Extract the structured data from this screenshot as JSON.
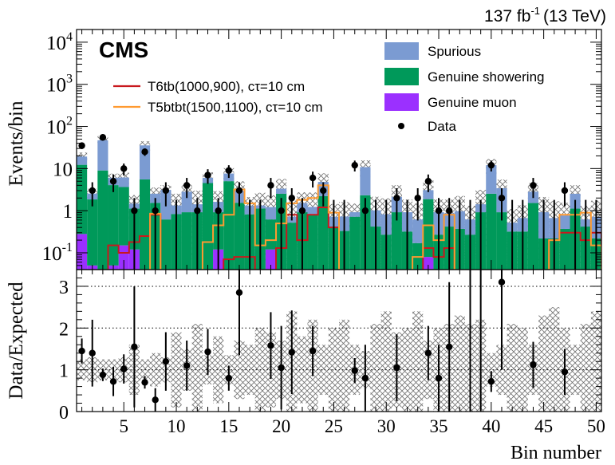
{
  "chart_data": {
    "type": "bar",
    "lumi_label": "137 fb",
    "lumi_sup": "-1",
    "lumi_energy": "(13 TeV)",
    "experiment": "CMS",
    "xlabel": "Bin number",
    "ylabel_top": "Events/bin",
    "ylabel_bottom": "Data/Expected",
    "xlim": [
      0.5,
      50.5
    ],
    "ylim_top": [
      0.04,
      20000
    ],
    "yscale_top": "log",
    "ylim_bottom": [
      0,
      3.4
    ],
    "x_ticks": [
      5,
      10,
      15,
      20,
      25,
      30,
      35,
      40,
      45,
      50
    ],
    "y_ticks_top": [
      {
        "value": 0.1,
        "base": "10",
        "exp": "-1"
      },
      {
        "value": 1,
        "label": "1"
      },
      {
        "value": 10,
        "label": "10"
      },
      {
        "value": 100,
        "base": "10",
        "exp": "2"
      },
      {
        "value": 1000,
        "base": "10",
        "exp": "3"
      },
      {
        "value": 10000,
        "base": "10",
        "exp": "4"
      }
    ],
    "y_ticks_bottom": [
      0,
      1,
      2,
      3
    ],
    "legend": {
      "spurious": "Spurious",
      "showering": "Genuine showering",
      "muon": "Genuine muon",
      "data": "Data",
      "signal1": "T6tb(1000,900), cτ=10 cm",
      "signal2": "T5btbt(1500,1100), cτ=10 cm"
    },
    "colors": {
      "spurious": "#7b9bd2",
      "showering": "#00995a",
      "muon": "#9b30ff",
      "signal1": "#c8181d",
      "signal2": "#ff9a30",
      "data": "#000000"
    },
    "bins": [
      1,
      2,
      3,
      4,
      5,
      6,
      7,
      8,
      9,
      10,
      11,
      12,
      13,
      14,
      15,
      16,
      17,
      18,
      19,
      20,
      21,
      22,
      23,
      24,
      25,
      26,
      27,
      28,
      29,
      30,
      31,
      32,
      33,
      34,
      35,
      36,
      37,
      38,
      39,
      40,
      41,
      42,
      43,
      44,
      45,
      46,
      47,
      48,
      49,
      50
    ],
    "background_series": [
      {
        "name": "Genuine muon",
        "values": [
          0.28,
          0.05,
          0.02,
          0.05,
          0.15,
          0.12,
          0.03,
          0.03,
          0.02,
          0.03,
          0.02,
          0.02,
          0.03,
          0.12,
          0.02,
          0.04,
          0.02,
          0.03,
          0.12,
          0.03,
          0.02,
          0.02,
          0.03,
          0.02,
          0.02,
          0.03,
          0.02,
          0.02,
          0.02,
          0.02,
          0.02,
          0.02,
          0.02,
          0.08,
          0.02,
          0.02,
          0.02,
          0.02,
          0.02,
          0.03,
          0.02,
          0.02,
          0.02,
          0.02,
          0.02,
          0.02,
          0.02,
          0.02,
          0.02,
          0.02
        ]
      },
      {
        "name": "Genuine showering",
        "values": [
          12,
          1.8,
          9,
          4,
          3.5,
          1.0,
          5.5,
          1.5,
          0.6,
          0.8,
          0.9,
          0.9,
          4.5,
          0.8,
          5,
          1.5,
          0.8,
          1.1,
          0.5,
          2.5,
          0.5,
          0.9,
          0.8,
          2.2,
          0.4,
          0.3,
          0.7,
          2.3,
          0.4,
          0.25,
          0.9,
          0.3,
          0.15,
          1.8,
          0.25,
          0.4,
          0.35,
          0.25,
          0.9,
          2.5,
          0.9,
          0.3,
          0.3,
          1.5,
          0.2,
          0.2,
          0.35,
          1.1,
          0.4,
          0.2
        ]
      },
      {
        "name": "Spurious",
        "values": [
          7,
          0.7,
          38,
          2,
          2.5,
          0.35,
          30,
          1.0,
          2.5,
          0.5,
          1.9,
          0.5,
          1.5,
          0.7,
          2.6,
          1.4,
          0.5,
          0.2,
          0.6,
          0.8,
          0.2,
          0.6,
          0.4,
          2.6,
          0.3,
          0.4,
          0.2,
          8.5,
          0.6,
          0.55,
          1.2,
          0.6,
          0.45,
          1.2,
          0.65,
          0.45,
          0.6,
          0.35,
          0.5,
          9.5,
          2.5,
          0.2,
          0.35,
          1.3,
          0.7,
          0.45,
          0.4,
          1.4,
          0.2,
          0.5
        ]
      }
    ],
    "signal_series": [
      {
        "name": "T6tb(1000,900), cτ=10 cm",
        "values": [
          0,
          0,
          0,
          0.15,
          0.1,
          0.18,
          0.25,
          0.8,
          0,
          0,
          0,
          0,
          0,
          0,
          0.07,
          0.08,
          0.08,
          0,
          0,
          0.13,
          0.8,
          0.2,
          0.8,
          1.2,
          0.4,
          0,
          0,
          0,
          0,
          0,
          0,
          0,
          0,
          0.13,
          0.08,
          0.13,
          0,
          0,
          0,
          0,
          0,
          0,
          0,
          0,
          0,
          0.2,
          0.3,
          0.3,
          0.2,
          0.3
        ]
      },
      {
        "name": "T5btbt(1500,1100), cτ=10 cm",
        "values": [
          0,
          0,
          0,
          0,
          0,
          0,
          0,
          0.85,
          0,
          0,
          0,
          0,
          0.18,
          0.45,
          0.8,
          3.2,
          1.5,
          0.15,
          0.2,
          0.5,
          1.5,
          1.8,
          2.0,
          4.0,
          0.9,
          0,
          0,
          0,
          0,
          0,
          0,
          0,
          0.08,
          0.45,
          0.2,
          0.8,
          0,
          0,
          0,
          0,
          0,
          0,
          0,
          0,
          0,
          0.2,
          0.8,
          0.8,
          0.9,
          0.15
        ]
      }
    ],
    "data_points": [
      {
        "bin": 1,
        "value": 35
      },
      {
        "bin": 2,
        "value": 3
      },
      {
        "bin": 3,
        "value": 55
      },
      {
        "bin": 4,
        "value": 5
      },
      {
        "bin": 5,
        "value": 10
      },
      {
        "bin": 6,
        "value": 1
      },
      {
        "bin": 7,
        "value": 25
      },
      {
        "bin": 8,
        "value": 1
      },
      {
        "bin": 9,
        "value": 3
      },
      {
        "bin": 10,
        "value": 0
      },
      {
        "bin": 11,
        "value": 4
      },
      {
        "bin": 12,
        "value": 1
      },
      {
        "bin": 13,
        "value": 7
      },
      {
        "bin": 14,
        "value": 1
      },
      {
        "bin": 15,
        "value": 9
      },
      {
        "bin": 16,
        "value": 3
      },
      {
        "bin": 17,
        "value": 0
      },
      {
        "bin": 18,
        "value": 0
      },
      {
        "bin": 19,
        "value": 4
      },
      {
        "bin": 20,
        "value": 1
      },
      {
        "bin": 21,
        "value": 2
      },
      {
        "bin": 22,
        "value": 1
      },
      {
        "bin": 23,
        "value": 6
      },
      {
        "bin": 24,
        "value": 3
      },
      {
        "bin": 25,
        "value": 0
      },
      {
        "bin": 26,
        "value": 0
      },
      {
        "bin": 27,
        "value": 12
      },
      {
        "bin": 28,
        "value": 1
      },
      {
        "bin": 29,
        "value": 0
      },
      {
        "bin": 30,
        "value": 0
      },
      {
        "bin": 31,
        "value": 2
      },
      {
        "bin": 32,
        "value": 0
      },
      {
        "bin": 33,
        "value": 2
      },
      {
        "bin": 34,
        "value": 5
      },
      {
        "bin": 35,
        "value": 1
      },
      {
        "bin": 36,
        "value": 1
      },
      {
        "bin": 37,
        "value": 0
      },
      {
        "bin": 38,
        "value": 0
      },
      {
        "bin": 39,
        "value": 0
      },
      {
        "bin": 40,
        "value": 12
      },
      {
        "bin": 41,
        "value": 2
      },
      {
        "bin": 42,
        "value": 0
      },
      {
        "bin": 43,
        "value": 0
      },
      {
        "bin": 44,
        "value": 4
      },
      {
        "bin": 45,
        "value": 0
      },
      {
        "bin": 46,
        "value": 0
      },
      {
        "bin": 47,
        "value": 3
      },
      {
        "bin": 48,
        "value": 0
      },
      {
        "bin": 49,
        "value": 0
      },
      {
        "bin": 50,
        "value": 0
      }
    ],
    "ratio_points": [
      {
        "bin": 1,
        "value": 1.45,
        "err": 0.3
      },
      {
        "bin": 2,
        "value": 1.4,
        "err": 0.8
      },
      {
        "bin": 3,
        "value": 0.88,
        "err": 0.15
      },
      {
        "bin": 4,
        "value": 0.72,
        "err": 0.35
      },
      {
        "bin": 5,
        "value": 1.02,
        "err": 0.35
      },
      {
        "bin": 6,
        "value": 1.55,
        "err": 1.45
      },
      {
        "bin": 7,
        "value": 0.7,
        "err": 0.15
      },
      {
        "bin": 8,
        "value": 0.28,
        "err": 0.28
      },
      {
        "bin": 9,
        "value": 1.2,
        "err": 0.7
      },
      {
        "bin": 11,
        "value": 1.1,
        "err": 0.6
      },
      {
        "bin": 13,
        "value": 1.43,
        "err": 0.55
      },
      {
        "bin": 15,
        "value": 0.8,
        "err": 0.3
      },
      {
        "bin": 16,
        "value": 2.85,
        "err": 1.5
      },
      {
        "bin": 19,
        "value": 1.58,
        "err": 0.8
      },
      {
        "bin": 20,
        "value": 1.05,
        "err": 1.0
      },
      {
        "bin": 21,
        "value": 1.42,
        "err": 1.0
      },
      {
        "bin": 23,
        "value": 1.45,
        "err": 0.6
      },
      {
        "bin": 27,
        "value": 0.98,
        "err": 0.3
      },
      {
        "bin": 28,
        "value": 0.8,
        "err": 0.8
      },
      {
        "bin": 31,
        "value": 1.05,
        "err": 0.8
      },
      {
        "bin": 34,
        "value": 1.4,
        "err": 0.65
      },
      {
        "bin": 35,
        "value": 0.8,
        "err": 0.8
      },
      {
        "bin": 36,
        "value": 1.55,
        "err": 1.55
      },
      {
        "bin": 40,
        "value": 0.72,
        "err": 0.25
      },
      {
        "bin": 41,
        "value": 3.1,
        "err": 2.1
      },
      {
        "bin": 44,
        "value": 1.12,
        "err": 0.55
      },
      {
        "bin": 47,
        "value": 0.95,
        "err": 0.55
      }
    ],
    "ratio_uncertainty": [
      0.25,
      0.3,
      0.25,
      0.25,
      0.3,
      0.6,
      0.25,
      0.4,
      0.3,
      0.9,
      0.5,
      1.1,
      0.35,
      0.8,
      0.35,
      0.7,
      0.6,
      1.0,
      0.9,
      0.7,
      1.4,
      0.8,
      1.2,
      0.6,
      1.0,
      1.2,
      0.6,
      0.45,
      1.1,
      1.4,
      0.9,
      1.0,
      1.4,
      0.7,
      1.0,
      1.1,
      1.3,
      1.1,
      1.2,
      0.4,
      0.6,
      1.1,
      1.0,
      0.6,
      1.3,
      1.5,
      1.0,
      0.6,
      1.1,
      1.4
    ]
  }
}
